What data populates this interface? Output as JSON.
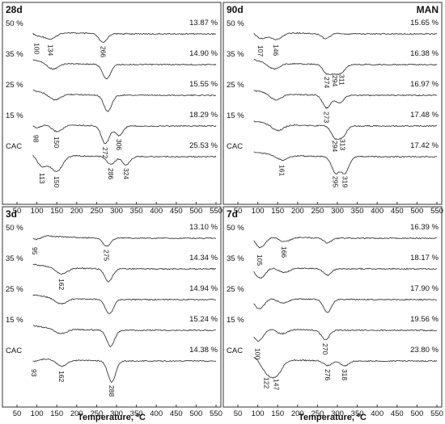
{
  "chart_data": [
    {
      "type": "line",
      "panel": "28d",
      "corner_note": "",
      "xlabel": "Temperature, ºC",
      "xlim": [
        50,
        550
      ],
      "xticks": [
        50,
        100,
        150,
        200,
        250,
        300,
        350,
        400,
        450,
        500,
        550
      ],
      "series": [
        {
          "name": "50 %",
          "mass_loss": "13.87 %",
          "peaks": [
            {
              "x": 100,
              "depth": 0.35
            },
            {
              "x": 134,
              "depth": 0.45
            },
            {
              "x": 266,
              "depth": 0.55
            }
          ],
          "peak_labels": [
            "100",
            "134",
            "266"
          ]
        },
        {
          "name": "35 %",
          "mass_loss": "14.90 %",
          "peaks": [
            {
              "x": 140,
              "depth": 0.4
            },
            {
              "x": 275,
              "depth": 0.9
            }
          ],
          "peak_labels": []
        },
        {
          "name": "25 %",
          "mass_loss": "15.55 %",
          "peaks": [
            {
              "x": 145,
              "depth": 0.4
            },
            {
              "x": 278,
              "depth": 1.0
            }
          ],
          "peak_labels": []
        },
        {
          "name": "15 %",
          "mass_loss": "18.29 %",
          "peaks": [
            {
              "x": 98,
              "depth": 0.35
            },
            {
              "x": 150,
              "depth": 0.45
            },
            {
              "x": 272,
              "depth": 1.1
            },
            {
              "x": 306,
              "depth": 0.6
            }
          ],
          "peak_labels": [
            "98",
            "150",
            "272",
            "306"
          ]
        },
        {
          "name": "CAC",
          "mass_loss": "25.53 %",
          "peaks": [
            {
              "x": 113,
              "depth": 0.8
            },
            {
              "x": 150,
              "depth": 1.0
            },
            {
              "x": 286,
              "depth": 0.5
            },
            {
              "x": 324,
              "depth": 0.5
            }
          ],
          "peak_labels": [
            "113",
            "150",
            "286",
            "324"
          ]
        }
      ]
    },
    {
      "type": "line",
      "panel": "90d",
      "corner_note": "MAN",
      "xlabel": "Temperature, ºC",
      "xlim": [
        50,
        550
      ],
      "xticks": [
        50,
        100,
        150,
        200,
        250,
        300,
        350,
        400,
        450,
        500,
        550
      ],
      "series": [
        {
          "name": "50 %",
          "mass_loss": "15.65 %",
          "peaks": [
            {
              "x": 107,
              "depth": 0.5
            },
            {
              "x": 146,
              "depth": 0.45
            },
            {
              "x": 270,
              "depth": 0.3
            }
          ],
          "peak_labels": [
            "107",
            "146"
          ]
        },
        {
          "name": "35 %",
          "mass_loss": "16.38 %",
          "peaks": [
            {
              "x": 140,
              "depth": 0.4
            },
            {
              "x": 274,
              "depth": 0.55
            },
            {
              "x": 294,
              "depth": 0.45
            },
            {
              "x": 311,
              "depth": 0.4
            }
          ],
          "peak_labels": [
            "274",
            "294",
            "311"
          ]
        },
        {
          "name": "25 %",
          "mass_loss": "16.97 %",
          "peaks": [
            {
              "x": 145,
              "depth": 0.4
            },
            {
              "x": 273,
              "depth": 0.8
            },
            {
              "x": 305,
              "depth": 0.5
            }
          ],
          "peak_labels": [
            "273"
          ]
        },
        {
          "name": "15 %",
          "mass_loss": "17.48 %",
          "peaks": [
            {
              "x": 150,
              "depth": 0.4
            },
            {
              "x": 294,
              "depth": 0.7
            },
            {
              "x": 313,
              "depth": 0.6
            }
          ],
          "peak_labels": [
            "294",
            "313"
          ]
        },
        {
          "name": "CAC",
          "mass_loss": "17.42 %",
          "peaks": [
            {
              "x": 161,
              "depth": 0.3
            },
            {
              "x": 295,
              "depth": 1.0
            },
            {
              "x": 319,
              "depth": 1.0
            }
          ],
          "peak_labels": [
            "161",
            "295",
            "319"
          ]
        }
      ]
    },
    {
      "type": "line",
      "panel": "3d",
      "corner_note": "",
      "xlabel": "Temperature, ºC",
      "xlim": [
        50,
        550
      ],
      "xticks": [
        50,
        100,
        150,
        200,
        250,
        300,
        350,
        400,
        450,
        500,
        550
      ],
      "series": [
        {
          "name": "50 %",
          "mass_loss": "13.10 %",
          "peaks": [
            {
              "x": 95,
              "depth": 0.35
            },
            {
              "x": 275,
              "depth": 0.5
            }
          ],
          "peak_labels": [
            "95",
            "275"
          ]
        },
        {
          "name": "35 %",
          "mass_loss": "14.34 %",
          "peaks": [
            {
              "x": 162,
              "depth": 0.4
            },
            {
              "x": 280,
              "depth": 0.8
            }
          ],
          "peak_labels": [
            "162"
          ]
        },
        {
          "name": "25 %",
          "mass_loss": "14.94 %",
          "peaks": [
            {
              "x": 160,
              "depth": 0.35
            },
            {
              "x": 282,
              "depth": 0.9
            }
          ],
          "peak_labels": []
        },
        {
          "name": "15 %",
          "mass_loss": "15.24 %",
          "peaks": [
            {
              "x": 160,
              "depth": 0.3
            },
            {
              "x": 285,
              "depth": 1.0
            }
          ],
          "peak_labels": []
        },
        {
          "name": "CAC",
          "mass_loss": "14.38 %",
          "peaks": [
            {
              "x": 93,
              "depth": 0.3
            },
            {
              "x": 162,
              "depth": 0.4
            },
            {
              "x": 288,
              "depth": 1.3
            }
          ],
          "peak_labels": [
            "93",
            "162",
            "288"
          ]
        }
      ]
    },
    {
      "type": "line",
      "panel": "7d",
      "corner_note": "",
      "xlabel": "Temperature, ºC",
      "xlim": [
        50,
        550
      ],
      "xticks": [
        50,
        100,
        150,
        200,
        250,
        300,
        350,
        400,
        450,
        500,
        550
      ],
      "series": [
        {
          "name": "50 %",
          "mass_loss": "16.39 %",
          "peaks": [
            {
              "x": 105,
              "depth": 0.8
            },
            {
              "x": 166,
              "depth": 0.3
            },
            {
              "x": 275,
              "depth": 0.3
            }
          ],
          "peak_labels": [
            "105",
            "166"
          ]
        },
        {
          "name": "35 %",
          "mass_loss": "18.17 %",
          "peaks": [
            {
              "x": 105,
              "depth": 0.8
            },
            {
              "x": 165,
              "depth": 0.3
            },
            {
              "x": 275,
              "depth": 0.4
            }
          ],
          "peak_labels": []
        },
        {
          "name": "25 %",
          "mass_loss": "17.90 %",
          "peaks": [
            {
              "x": 103,
              "depth": 0.8
            },
            {
              "x": 163,
              "depth": 0.3
            },
            {
              "x": 275,
              "depth": 0.8
            }
          ],
          "peak_labels": []
        },
        {
          "name": "15 %",
          "mass_loss": "19.56 %",
          "peaks": [
            {
              "x": 100,
              "depth": 0.9
            },
            {
              "x": 160,
              "depth": 0.3
            },
            {
              "x": 270,
              "depth": 0.6
            }
          ],
          "peak_labels": [
            "100",
            "270"
          ]
        },
        {
          "name": "CAC",
          "mass_loss": "23.80 %",
          "peaks": [
            {
              "x": 122,
              "depth": 0.8
            },
            {
              "x": 147,
              "depth": 0.9
            },
            {
              "x": 276,
              "depth": 0.3
            },
            {
              "x": 318,
              "depth": 0.3
            }
          ],
          "peak_labels": [
            "122",
            "147",
            "276",
            "318"
          ]
        }
      ]
    }
  ]
}
